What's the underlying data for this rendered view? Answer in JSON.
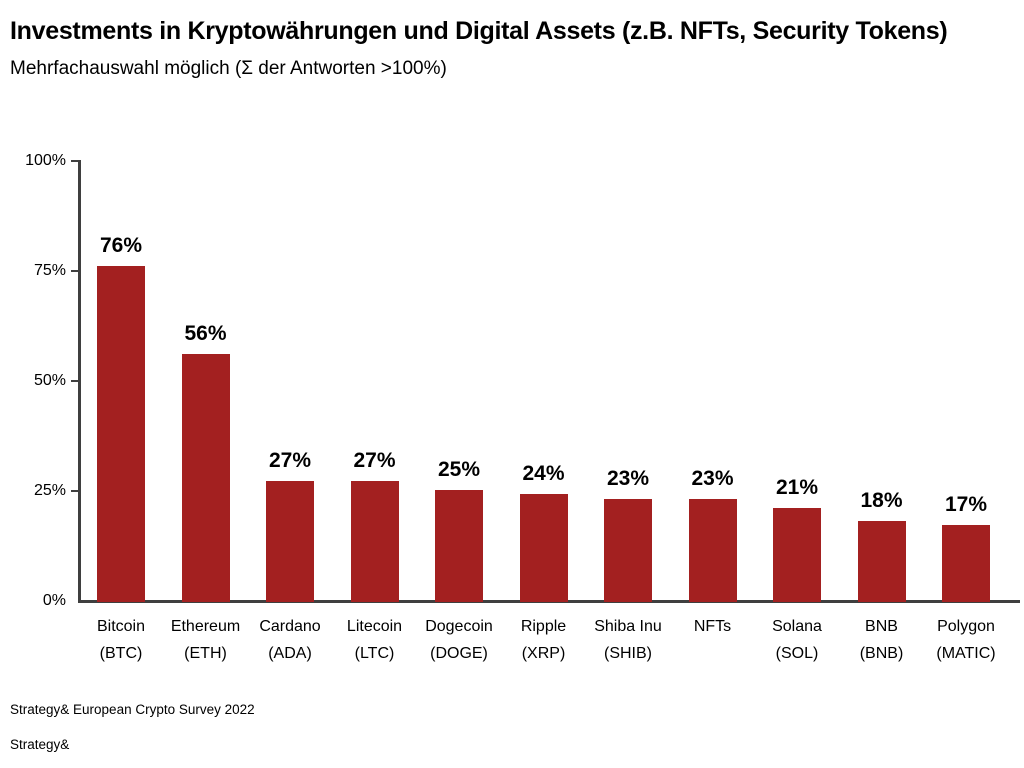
{
  "header": {
    "title": "Investments in Kryptowährungen und Digital Assets (z.B. NFTs, Security Tokens)",
    "subtitle": "Mehrfachauswahl möglich (Σ der Antworten >100%)"
  },
  "chart_data": {
    "type": "bar",
    "title": "Investments in Kryptowährungen und Digital Assets (z.B. NFTs, Security Tokens)",
    "subtitle": "Mehrfachauswahl möglich (Σ der Antworten >100%)",
    "categories": [
      "Bitcoin\n(BTC)",
      "Ethereum\n(ETH)",
      "Cardano\n(ADA)",
      "Litecoin\n(LTC)",
      "Dogecoin\n(DOGE)",
      "Ripple\n(XRP)",
      "Shiba Inu\n(SHIB)",
      "NFTs",
      "Solana\n(SOL)",
      "BNB\n(BNB)",
      "Polygon\n(MATIC)"
    ],
    "values": [
      76,
      56,
      27,
      27,
      25,
      24,
      23,
      23,
      21,
      18,
      17
    ],
    "value_unit": "%",
    "xlabel": "",
    "ylabel": "",
    "ylim": [
      0,
      100
    ],
    "yticks": [
      0,
      25,
      50,
      75,
      100
    ],
    "ytick_labels": [
      "0%",
      "25%",
      "50%",
      "75%",
      "100%"
    ],
    "grid": false,
    "legend": null,
    "bar_color": "#A32020",
    "axis_color": "#3F3F3F",
    "label_color": "#000000"
  },
  "footer": {
    "source": "Strategy& European Crypto Survey 2022",
    "brand": "Strategy&"
  }
}
